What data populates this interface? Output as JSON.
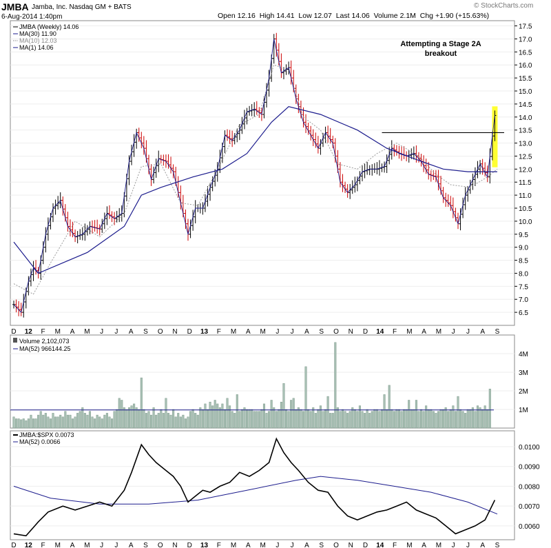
{
  "header": {
    "ticker": "JMBA",
    "company": "Jamba, Inc.",
    "exchange": "Nasdaq GM + BATS",
    "date": "6-Aug-2014 1:40pm",
    "open_label": "Open",
    "open": "12.16",
    "high_label": "High",
    "high": "14.41",
    "low_label": "Low",
    "low": "12.07",
    "last_label": "Last",
    "last": "14.06",
    "volume_label": "Volume",
    "volume": "2.1M",
    "chg_label": "Chg",
    "chg": "+1.90 (+15.63%)",
    "watermark": "© StockCharts.com"
  },
  "colors": {
    "up_bar": "#000000",
    "down_bar": "#cc0000",
    "ma30": "#1a1a8c",
    "ma10": "#999999",
    "volume_bar": "#a8c0b4",
    "ratio_line": "#000000",
    "highlight": "#ffff33",
    "ma52": "#1a1a8c"
  },
  "chart_data": [
    {
      "type": "line",
      "title": "JMBA (Weekly) 14.06",
      "legend": [
        {
          "label": "JMBA (Weekly) 14.06",
          "style": "ohlc bars"
        },
        {
          "label": "MA(30) 11.90",
          "style": "solid dark blue"
        },
        {
          "label": "MA(10) 12.03",
          "style": "dotted gray"
        },
        {
          "label": "MA(1) 14.06",
          "style": "solid dark blue thin"
        }
      ],
      "annotation": "Attempting a Stage 2A breakout",
      "resistance_level": 13.4,
      "ylim": [
        6.0,
        17.7
      ],
      "yticks": [
        6.5,
        7.0,
        7.5,
        8.0,
        8.5,
        9.0,
        9.5,
        10.0,
        10.5,
        11.0,
        11.5,
        12.0,
        12.5,
        13.0,
        13.5,
        14.0,
        14.5,
        15.0,
        15.5,
        16.0,
        16.5,
        17.0,
        17.5
      ],
      "x_months": [
        "D",
        "12",
        "F",
        "M",
        "A",
        "M",
        "J",
        "J",
        "A",
        "S",
        "O",
        "N",
        "D",
        "13",
        "F",
        "M",
        "A",
        "M",
        "J",
        "J",
        "A",
        "S",
        "O",
        "N",
        "D",
        "14",
        "F",
        "M",
        "A",
        "M",
        "J",
        "J",
        "A",
        "S"
      ],
      "ma30_points": [
        [
          0,
          9.2
        ],
        [
          10,
          8.0
        ],
        [
          30,
          8.8
        ],
        [
          45,
          9.8
        ],
        [
          52,
          11.0
        ],
        [
          60,
          11.3
        ],
        [
          73,
          11.7
        ],
        [
          85,
          12.0
        ],
        [
          95,
          12.6
        ],
        [
          105,
          13.8
        ],
        [
          112,
          14.4
        ],
        [
          125,
          14.1
        ],
        [
          140,
          13.5
        ],
        [
          152,
          12.8
        ],
        [
          166,
          12.3
        ],
        [
          175,
          12.0
        ],
        [
          185,
          11.9
        ],
        [
          197,
          11.9
        ]
      ],
      "ma10_points": [
        [
          0,
          7.6
        ],
        [
          8,
          7.2
        ],
        [
          15,
          8.4
        ],
        [
          25,
          10.0
        ],
        [
          35,
          9.4
        ],
        [
          45,
          10.3
        ],
        [
          52,
          12.1
        ],
        [
          60,
          12.2
        ],
        [
          68,
          10.7
        ],
        [
          75,
          10.6
        ],
        [
          82,
          11.8
        ],
        [
          92,
          13.7
        ],
        [
          100,
          14.1
        ],
        [
          106,
          16.0
        ],
        [
          112,
          15.8
        ],
        [
          118,
          14.0
        ],
        [
          125,
          13.5
        ],
        [
          132,
          12.2
        ],
        [
          140,
          12.0
        ],
        [
          148,
          12.6
        ],
        [
          156,
          13.0
        ],
        [
          165,
          12.5
        ],
        [
          172,
          11.8
        ],
        [
          178,
          11.4
        ],
        [
          186,
          11.3
        ],
        [
          193,
          11.7
        ],
        [
          197,
          12.0
        ]
      ],
      "close_points": [
        [
          0,
          6.8
        ],
        [
          3,
          6.5
        ],
        [
          6,
          7.7
        ],
        [
          8,
          8.2
        ],
        [
          10,
          8.0
        ],
        [
          13,
          9.5
        ],
        [
          16,
          10.5
        ],
        [
          19,
          10.8
        ],
        [
          22,
          9.8
        ],
        [
          25,
          9.4
        ],
        [
          28,
          9.5
        ],
        [
          31,
          9.8
        ],
        [
          35,
          9.7
        ],
        [
          38,
          10.3
        ],
        [
          41,
          10.1
        ],
        [
          44,
          10.3
        ],
        [
          47,
          12.3
        ],
        [
          50,
          13.4
        ],
        [
          53,
          12.8
        ],
        [
          56,
          11.6
        ],
        [
          59,
          12.4
        ],
        [
          62,
          12.3
        ],
        [
          65,
          11.9
        ],
        [
          68,
          10.7
        ],
        [
          71,
          9.5
        ],
        [
          74,
          10.5
        ],
        [
          77,
          10.5
        ],
        [
          80,
          11.3
        ],
        [
          83,
          12.0
        ],
        [
          86,
          13.3
        ],
        [
          89,
          13.1
        ],
        [
          92,
          13.5
        ],
        [
          95,
          14.2
        ],
        [
          98,
          14.3
        ],
        [
          101,
          14.1
        ],
        [
          104,
          15.5
        ],
        [
          106,
          17.0
        ],
        [
          109,
          15.7
        ],
        [
          112,
          15.9
        ],
        [
          115,
          14.7
        ],
        [
          118,
          13.8
        ],
        [
          121,
          13.3
        ],
        [
          124,
          12.8
        ],
        [
          127,
          13.4
        ],
        [
          130,
          13.0
        ],
        [
          133,
          11.5
        ],
        [
          136,
          11.1
        ],
        [
          139,
          11.4
        ],
        [
          142,
          11.9
        ],
        [
          145,
          12.0
        ],
        [
          148,
          12.0
        ],
        [
          151,
          12.1
        ],
        [
          154,
          12.8
        ],
        [
          157,
          12.6
        ],
        [
          160,
          12.5
        ],
        [
          163,
          12.6
        ],
        [
          166,
          12.3
        ],
        [
          169,
          11.8
        ],
        [
          172,
          11.7
        ],
        [
          175,
          10.9
        ],
        [
          178,
          10.6
        ],
        [
          181,
          9.9
        ],
        [
          184,
          11.0
        ],
        [
          187,
          11.6
        ],
        [
          190,
          12.2
        ],
        [
          193,
          11.7
        ],
        [
          196,
          14.06
        ]
      ],
      "ohlc_note": "weekly OHLC bars traced by close_points"
    },
    {
      "type": "bar",
      "title": "Volume 2,102,073",
      "legend": [
        {
          "label": "Volume 2,102,073"
        },
        {
          "label": "MA(52) 966144.25"
        }
      ],
      "ylim": [
        0,
        5000000
      ],
      "yticks_labels": [
        "1M",
        "2M",
        "3M",
        "4M"
      ],
      "yticks_values": [
        1000000,
        2000000,
        3000000,
        4000000
      ],
      "volume_values": [
        0.6,
        0.5,
        0.5,
        0.45,
        0.5,
        0.4,
        0.5,
        0.7,
        0.5,
        0.5,
        0.7,
        0.9,
        0.7,
        0.8,
        0.6,
        0.5,
        0.8,
        0.6,
        0.6,
        0.7,
        0.6,
        0.9,
        0.7,
        0.7,
        0.5,
        0.6,
        0.8,
        0.9,
        1.1,
        0.8,
        0.7,
        0.9,
        0.6,
        0.5,
        0.7,
        0.6,
        0.5,
        0.7,
        0.8,
        0.6,
        0.5,
        0.9,
        1.0,
        1.6,
        1.5,
        1.1,
        1.0,
        1.1,
        1.2,
        1.3,
        1.1,
        1.0,
        2.7,
        1.0,
        0.8,
        0.9,
        0.7,
        1.1,
        0.7,
        0.8,
        1.0,
        0.8,
        1.6,
        0.8,
        0.7,
        1.0,
        0.6,
        0.8,
        0.6,
        0.7,
        0.5,
        0.6,
        0.9,
        1.0,
        0.8,
        0.7,
        1.1,
        1.0,
        1.3,
        1.0,
        1.4,
        1.2,
        1.5,
        1.3,
        1.1,
        1.3,
        1.0,
        1.6,
        1.2,
        0.9,
        0.8,
        1.8,
        0.9,
        1.0,
        1.1,
        1.0,
        1.0,
        1.0,
        0.9,
        0.9,
        0.9,
        1.0,
        1.3,
        0.8,
        0.9,
        1.5,
        1.1,
        0.9,
        1.0,
        1.4,
        2.4,
        1.0,
        0.9,
        1.5,
        1.6,
        1.0,
        1.1,
        1.0,
        0.9,
        3.3,
        1.0,
        0.9,
        1.1,
        0.8,
        1.0,
        1.2,
        0.9,
        1.0,
        1.7,
        0.8,
        0.8,
        4.6,
        1.1,
        0.9,
        1.0,
        0.9,
        0.8,
        0.9,
        1.1,
        1.0,
        0.9,
        1.2,
        0.9,
        0.8,
        1.0,
        0.8,
        0.9,
        1.0,
        1.0,
        0.9,
        1.0,
        1.8,
        1.0,
        2.3,
        1.0,
        0.9,
        1.0,
        1.0,
        0.9,
        1.0,
        1.0,
        1.5,
        1.0,
        1.0,
        1.5,
        0.9,
        1.0,
        0.9,
        1.2,
        1.0,
        1.0,
        0.9,
        0.8,
        0.9,
        1.0,
        1.0,
        1.1,
        0.9,
        1.0,
        1.2,
        0.9,
        1.7,
        1.0,
        0.9,
        0.8,
        1.0,
        1.0,
        1.1,
        0.9,
        1.2,
        1.1,
        1.0,
        1.2,
        1.0,
        2.1
      ],
      "ma52_level_M": 0.97
    },
    {
      "type": "line",
      "title": "JMBA:$SPX 0.0073",
      "legend": [
        {
          "label": "JMBA:$SPX 0.0073"
        },
        {
          "label": "MA(52) 0.0066"
        }
      ],
      "ylim": [
        0.0053,
        0.0108
      ],
      "yticks": [
        0.006,
        0.007,
        0.008,
        0.009,
        0.01
      ],
      "ytick_labels": [
        "0.0060",
        "0.0070",
        "0.0080",
        "0.0090",
        "0.0100"
      ],
      "ratio_points": [
        [
          0,
          0.0056
        ],
        [
          5,
          0.0055
        ],
        [
          10,
          0.0062
        ],
        [
          14,
          0.0067
        ],
        [
          20,
          0.007
        ],
        [
          25,
          0.0068
        ],
        [
          30,
          0.007
        ],
        [
          35,
          0.0072
        ],
        [
          40,
          0.007
        ],
        [
          45,
          0.0078
        ],
        [
          48,
          0.0087
        ],
        [
          52,
          0.0101
        ],
        [
          55,
          0.0096
        ],
        [
          58,
          0.0092
        ],
        [
          62,
          0.0088
        ],
        [
          65,
          0.0085
        ],
        [
          68,
          0.008
        ],
        [
          71,
          0.0072
        ],
        [
          74,
          0.0075
        ],
        [
          77,
          0.0078
        ],
        [
          80,
          0.0077
        ],
        [
          84,
          0.008
        ],
        [
          88,
          0.0082
        ],
        [
          92,
          0.0087
        ],
        [
          96,
          0.0085
        ],
        [
          100,
          0.0088
        ],
        [
          104,
          0.0092
        ],
        [
          107,
          0.0104
        ],
        [
          110,
          0.0097
        ],
        [
          113,
          0.0092
        ],
        [
          116,
          0.0088
        ],
        [
          120,
          0.0082
        ],
        [
          124,
          0.0078
        ],
        [
          128,
          0.0077
        ],
        [
          132,
          0.007
        ],
        [
          136,
          0.0065
        ],
        [
          140,
          0.0063
        ],
        [
          144,
          0.0065
        ],
        [
          148,
          0.0067
        ],
        [
          152,
          0.0068
        ],
        [
          156,
          0.007
        ],
        [
          160,
          0.0072
        ],
        [
          164,
          0.0068
        ],
        [
          168,
          0.0066
        ],
        [
          172,
          0.0064
        ],
        [
          176,
          0.006
        ],
        [
          180,
          0.0056
        ],
        [
          184,
          0.0058
        ],
        [
          188,
          0.006
        ],
        [
          192,
          0.0063
        ],
        [
          196,
          0.0073
        ]
      ],
      "ma52_points": [
        [
          0,
          0.008
        ],
        [
          15,
          0.0074
        ],
        [
          35,
          0.0071
        ],
        [
          55,
          0.0071
        ],
        [
          75,
          0.0073
        ],
        [
          95,
          0.0078
        ],
        [
          115,
          0.0083
        ],
        [
          125,
          0.0085
        ],
        [
          140,
          0.0083
        ],
        [
          155,
          0.008
        ],
        [
          170,
          0.0077
        ],
        [
          185,
          0.0072
        ],
        [
          197,
          0.0066
        ]
      ]
    }
  ]
}
